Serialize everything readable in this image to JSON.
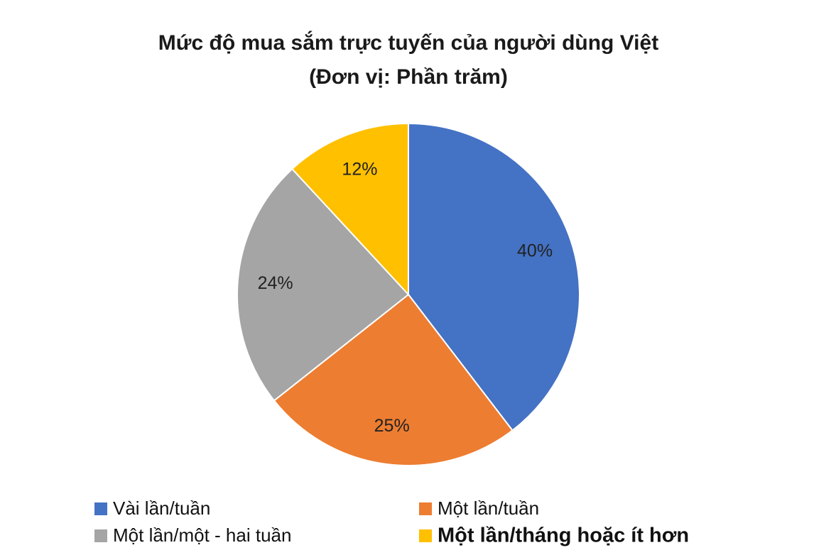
{
  "chart_data": {
    "type": "pie",
    "title": "Mức độ mua sắm trực tuyến của người dùng Việt",
    "subtitle": "(Đơn vị: Phần trăm)",
    "categories": [
      "Vài lần/tuần",
      "Một lần/tuần",
      "Một lần/một - hai tuần",
      "Một lần/tháng hoặc ít hơn"
    ],
    "values": [
      40,
      25,
      24,
      12
    ],
    "value_labels": [
      "40%",
      "25%",
      "24%",
      "12%"
    ],
    "colors": [
      "#4472c4",
      "#ed7d31",
      "#a5a5a5",
      "#ffc000"
    ],
    "legend": "bottom"
  }
}
